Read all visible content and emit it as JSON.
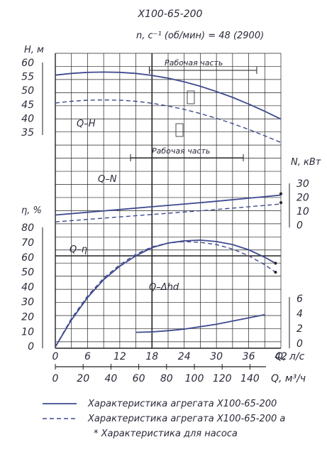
{
  "chart_data": {
    "type": "line",
    "title": "Х100-65-200",
    "speed_label": "n, с⁻¹ (об/мин) = 48 (2900)",
    "working_zone_label": "Рабочая часть",
    "x_axis": {
      "q_ls_label": "Q, л/с",
      "q_ls_ticks": [
        "0",
        "6",
        "12",
        "18",
        "24",
        "30",
        "36",
        "42"
      ],
      "q_m3h_label": "Q, м³/ч",
      "q_m3h_ticks": [
        "0",
        "20",
        "40",
        "60",
        "80",
        "100",
        "120",
        "140"
      ]
    },
    "axes": {
      "head": {
        "label": "H, м",
        "ticks": [
          "60",
          "55",
          "50",
          "45",
          "40",
          "35"
        ],
        "range": [
          35,
          60
        ]
      },
      "power": {
        "label": "N, кВт",
        "ticks": [
          "30",
          "20",
          "10",
          "0"
        ],
        "range": [
          0,
          30
        ]
      },
      "efficiency": {
        "label": "η, %",
        "ticks": [
          "80",
          "70",
          "60",
          "50",
          "40",
          "30",
          "20",
          "10",
          "0"
        ],
        "range": [
          0,
          80
        ]
      },
      "npsh": {
        "label": "",
        "ticks": [
          "6",
          "4",
          "2",
          "0"
        ],
        "range": [
          0,
          6
        ]
      }
    },
    "curve_labels": {
      "qh": "Q–H",
      "qn": "Q–N",
      "qeta": "Q–η",
      "qdh": "Q–Δhd"
    },
    "series": [
      {
        "name": "Характеристика агрегата Х100-65-200",
        "curve": "Q-H",
        "style": "solid",
        "x": [
          0,
          3,
          6,
          9,
          12,
          15,
          18,
          21,
          24,
          27,
          30,
          33,
          36,
          39,
          42
        ],
        "y": [
          56,
          56.6,
          57,
          57.1,
          57,
          56.6,
          55.9,
          54.9,
          53.6,
          52,
          50.1,
          48,
          45.6,
          43,
          40.2
        ]
      },
      {
        "name": "Характеристика агрегата Х100-65-200 а",
        "curve": "Q-H",
        "style": "dashed",
        "x": [
          0,
          3,
          6,
          9,
          12,
          15,
          18,
          21,
          24,
          27,
          30,
          33,
          36,
          39,
          42
        ],
        "y": [
          46,
          46.6,
          47,
          47.1,
          47,
          46.6,
          45.9,
          44.9,
          43.7,
          42.2,
          40.5,
          38.6,
          36.5,
          34.2,
          31.8
        ]
      },
      {
        "name": "Характеристика агрегата Х100-65-200",
        "curve": "Q-N",
        "style": "solid",
        "x": [
          0,
          6,
          12,
          18,
          24,
          30,
          36,
          42
        ],
        "y": [
          8,
          10,
          12,
          14,
          16,
          18,
          20.2,
          22.5
        ]
      },
      {
        "name": "Характеристика агрегата Х100-65-200 а",
        "curve": "Q-N",
        "style": "dashed",
        "x": [
          0,
          6,
          12,
          18,
          24,
          30,
          36,
          42
        ],
        "y": [
          3,
          4.8,
          6.6,
          8.4,
          10.2,
          12,
          14,
          16
        ]
      },
      {
        "name": "Характеристика агрегата Х100-65-200",
        "curve": "Q-η",
        "style": "solid",
        "x": [
          0,
          3,
          6,
          9,
          12,
          15,
          18,
          21,
          24,
          27,
          30,
          33,
          36,
          39,
          41
        ],
        "y": [
          0,
          18,
          33,
          45,
          54,
          61,
          66.5,
          69.5,
          71,
          71.5,
          70.5,
          68.5,
          65,
          60,
          56
        ]
      },
      {
        "name": "Характеристика агрегата Х100-65-200 а",
        "curve": "Q-η",
        "style": "dashed",
        "x": [
          0,
          3,
          6,
          9,
          12,
          15,
          18,
          21,
          24,
          27,
          30,
          33,
          36,
          39,
          41
        ],
        "y": [
          0,
          19,
          34,
          46,
          55,
          62,
          67,
          69.5,
          70.5,
          70,
          68.5,
          65.5,
          61,
          55,
          50
        ]
      },
      {
        "name": "Характеристика агрегата Х100-65-200",
        "curve": "Q-Δhd",
        "style": "solid",
        "x": [
          15,
          18,
          21,
          24,
          27,
          30,
          33,
          36,
          39
        ],
        "y": [
          1.8,
          1.85,
          2,
          2.2,
          2.5,
          2.8,
          3.2,
          3.6,
          4.0
        ]
      }
    ],
    "pump_points": {
      "note": "* Характеристика для насоса",
      "power_solid": [
        42,
        23.5
      ],
      "power_dashed": [
        42,
        17
      ],
      "eta_solid": [
        41,
        56
      ],
      "eta_dashed": [
        41,
        50
      ]
    },
    "legend": [
      {
        "style": "solid",
        "text": "Характеристика агрегата Х100-65-200"
      },
      {
        "style": "dashed",
        "text": "Характеристика агрегата Х100-65-200 а"
      },
      {
        "style": "none",
        "text": "* Характеристика для насоса"
      }
    ],
    "grid": true,
    "colors": {
      "line": "#3f4a8f",
      "grid": "#222222",
      "text": "#2a2a3a"
    }
  }
}
